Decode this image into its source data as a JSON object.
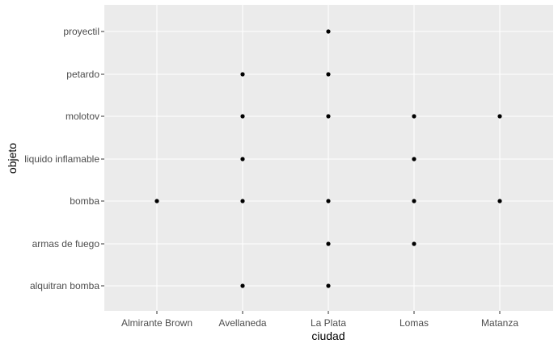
{
  "chart_data": {
    "type": "scatter",
    "title": "",
    "xlabel": "ciudad",
    "ylabel": "objeto",
    "x_categories": [
      "Almirante Brown",
      "Avellaneda",
      "La Plata",
      "Lomas",
      "Matanza"
    ],
    "y_categories": [
      "alquitran bomba",
      "armas de fuego",
      "bomba",
      "liquido inflamable",
      "molotov",
      "petardo",
      "proyectil"
    ],
    "points": [
      {
        "x": "Almirante Brown",
        "y": "bomba"
      },
      {
        "x": "Avellaneda",
        "y": "alquitran bomba"
      },
      {
        "x": "Avellaneda",
        "y": "bomba"
      },
      {
        "x": "Avellaneda",
        "y": "liquido inflamable"
      },
      {
        "x": "Avellaneda",
        "y": "molotov"
      },
      {
        "x": "Avellaneda",
        "y": "petardo"
      },
      {
        "x": "La Plata",
        "y": "alquitran bomba"
      },
      {
        "x": "La Plata",
        "y": "armas de fuego"
      },
      {
        "x": "La Plata",
        "y": "bomba"
      },
      {
        "x": "La Plata",
        "y": "molotov"
      },
      {
        "x": "La Plata",
        "y": "petardo"
      },
      {
        "x": "La Plata",
        "y": "proyectil"
      },
      {
        "x": "Lomas",
        "y": "armas de fuego"
      },
      {
        "x": "Lomas",
        "y": "bomba"
      },
      {
        "x": "Lomas",
        "y": "liquido inflamable"
      },
      {
        "x": "Lomas",
        "y": "molotov"
      },
      {
        "x": "Matanza",
        "y": "bomba"
      },
      {
        "x": "Matanza",
        "y": "molotov"
      }
    ],
    "grid": true,
    "legend": "none",
    "panel_color": "#ebebeb",
    "grid_color": "#ffffff",
    "point_color": "#000000"
  }
}
